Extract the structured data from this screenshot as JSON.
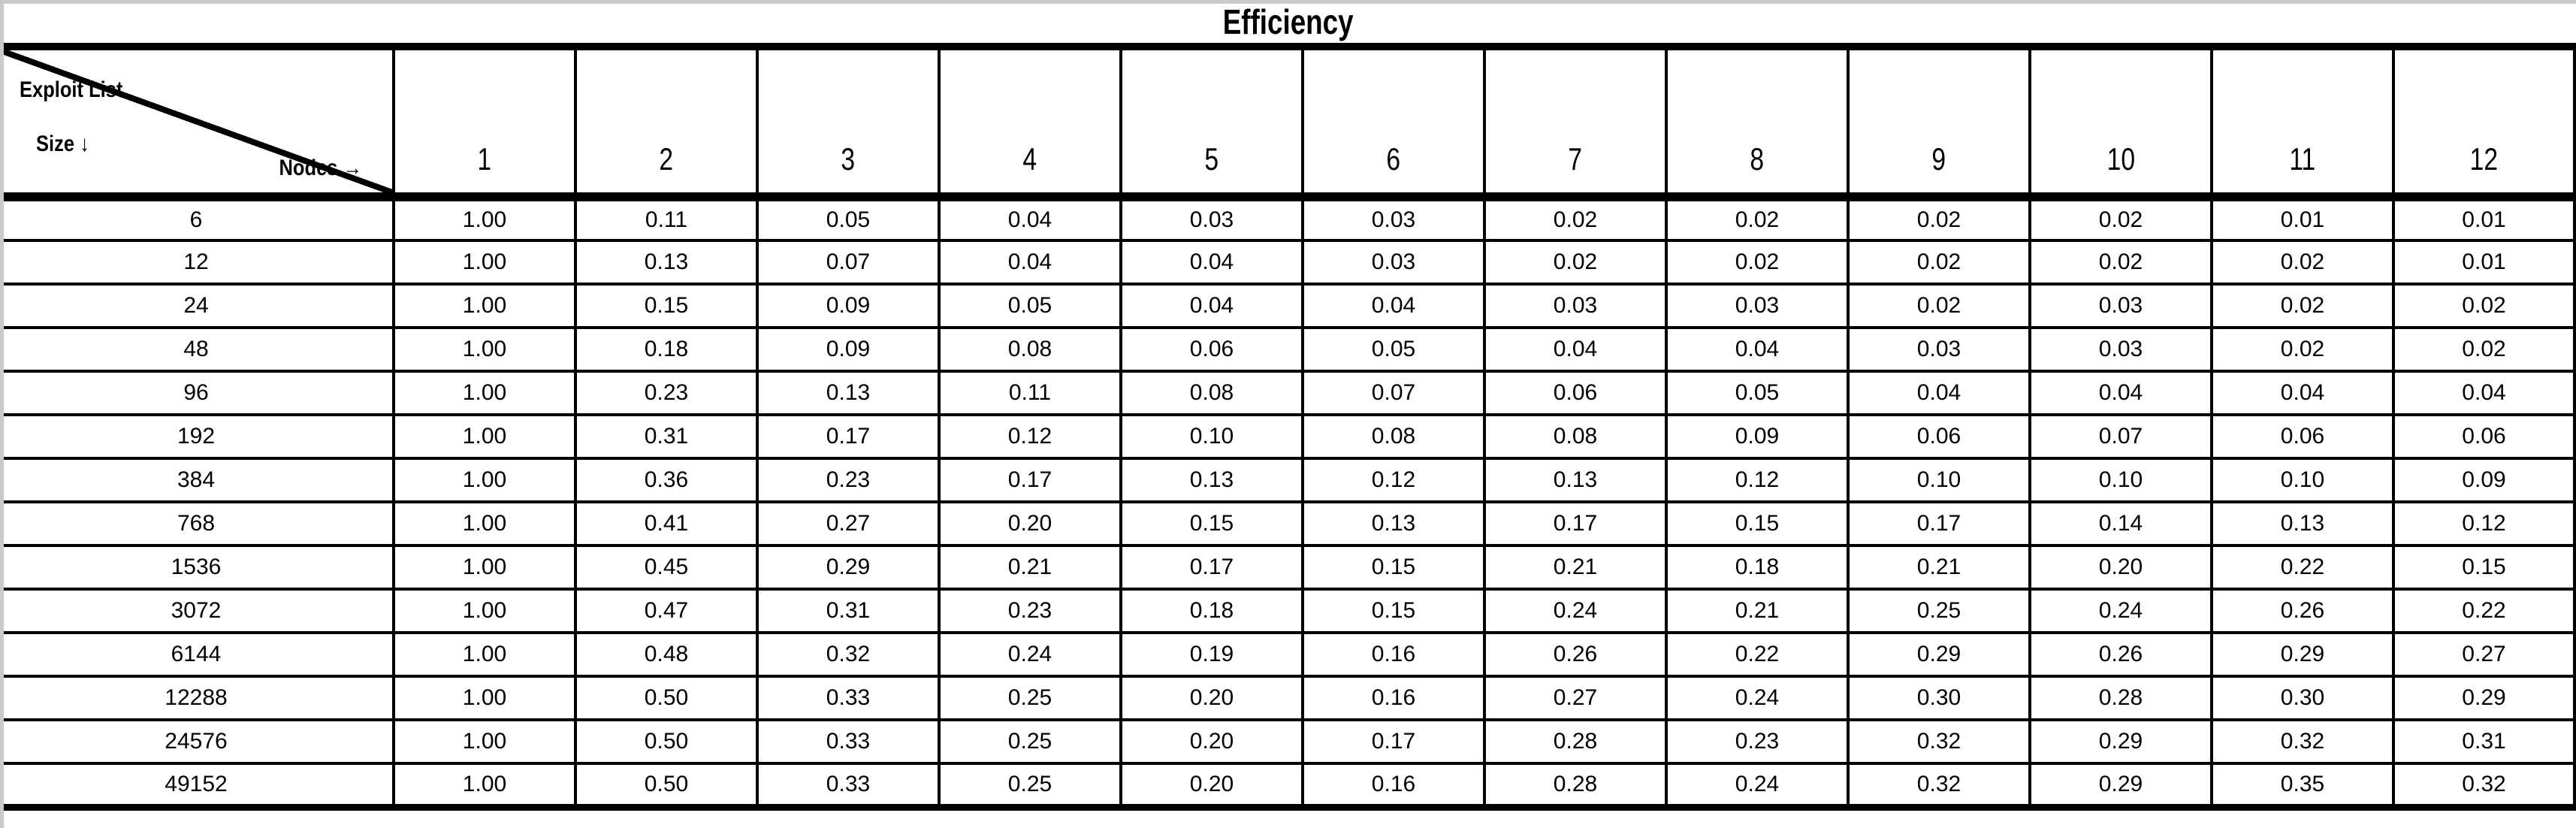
{
  "title": "Efficiency",
  "corner": {
    "top_label": "Exploit List",
    "left_label": "Size ↓",
    "bottom_label": "Nodes →"
  },
  "colors": {
    "grid": "#000000",
    "background": "#ffffff",
    "text": "#000000",
    "frame_edge": "#c9c9c9"
  },
  "chart_data": {
    "type": "table",
    "title": "Efficiency",
    "row_axis_label": "Exploit List Size",
    "col_axis_label": "Nodes",
    "columns": [
      1,
      2,
      3,
      4,
      5,
      6,
      7,
      8,
      9,
      10,
      11,
      12
    ],
    "value_format": "0.00",
    "rows": [
      {
        "size": 6,
        "values": [
          1.0,
          0.11,
          0.05,
          0.04,
          0.03,
          0.03,
          0.02,
          0.02,
          0.02,
          0.02,
          0.01,
          0.01
        ]
      },
      {
        "size": 12,
        "values": [
          1.0,
          0.13,
          0.07,
          0.04,
          0.04,
          0.03,
          0.02,
          0.02,
          0.02,
          0.02,
          0.02,
          0.01
        ]
      },
      {
        "size": 24,
        "values": [
          1.0,
          0.15,
          0.09,
          0.05,
          0.04,
          0.04,
          0.03,
          0.03,
          0.02,
          0.03,
          0.02,
          0.02
        ]
      },
      {
        "size": 48,
        "values": [
          1.0,
          0.18,
          0.09,
          0.08,
          0.06,
          0.05,
          0.04,
          0.04,
          0.03,
          0.03,
          0.02,
          0.02
        ]
      },
      {
        "size": 96,
        "values": [
          1.0,
          0.23,
          0.13,
          0.11,
          0.08,
          0.07,
          0.06,
          0.05,
          0.04,
          0.04,
          0.04,
          0.04
        ]
      },
      {
        "size": 192,
        "values": [
          1.0,
          0.31,
          0.17,
          0.12,
          0.1,
          0.08,
          0.08,
          0.09,
          0.06,
          0.07,
          0.06,
          0.06
        ]
      },
      {
        "size": 384,
        "values": [
          1.0,
          0.36,
          0.23,
          0.17,
          0.13,
          0.12,
          0.13,
          0.12,
          0.1,
          0.1,
          0.1,
          0.09
        ]
      },
      {
        "size": 768,
        "values": [
          1.0,
          0.41,
          0.27,
          0.2,
          0.15,
          0.13,
          0.17,
          0.15,
          0.17,
          0.14,
          0.13,
          0.12
        ]
      },
      {
        "size": 1536,
        "values": [
          1.0,
          0.45,
          0.29,
          0.21,
          0.17,
          0.15,
          0.21,
          0.18,
          0.21,
          0.2,
          0.22,
          0.15
        ]
      },
      {
        "size": 3072,
        "values": [
          1.0,
          0.47,
          0.31,
          0.23,
          0.18,
          0.15,
          0.24,
          0.21,
          0.25,
          0.24,
          0.26,
          0.22
        ]
      },
      {
        "size": 6144,
        "values": [
          1.0,
          0.48,
          0.32,
          0.24,
          0.19,
          0.16,
          0.26,
          0.22,
          0.29,
          0.26,
          0.29,
          0.27
        ]
      },
      {
        "size": 12288,
        "values": [
          1.0,
          0.5,
          0.33,
          0.25,
          0.2,
          0.16,
          0.27,
          0.24,
          0.3,
          0.28,
          0.3,
          0.29
        ]
      },
      {
        "size": 24576,
        "values": [
          1.0,
          0.5,
          0.33,
          0.25,
          0.2,
          0.17,
          0.28,
          0.23,
          0.32,
          0.29,
          0.32,
          0.31
        ]
      },
      {
        "size": 49152,
        "values": [
          1.0,
          0.5,
          0.33,
          0.25,
          0.2,
          0.16,
          0.28,
          0.24,
          0.32,
          0.29,
          0.35,
          0.32
        ]
      }
    ]
  }
}
